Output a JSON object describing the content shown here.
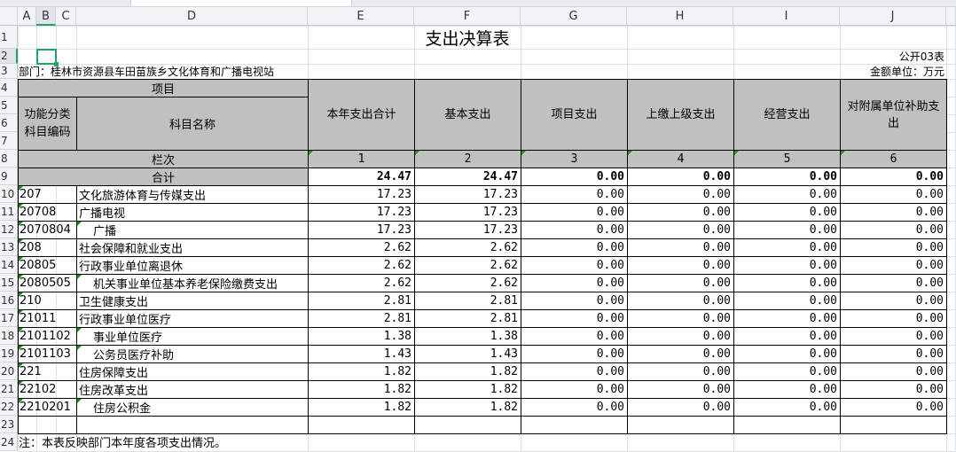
{
  "sheet": {
    "columns": [
      "A",
      "B",
      "C",
      "D",
      "E",
      "F",
      "G",
      "H",
      "I",
      "J"
    ],
    "selected_cell": "B2",
    "title": "支出决算表",
    "form_code": "公开03表",
    "department": "部门：桂林市资源县车田苗族乡文化体育和广播电视站",
    "unit": "金额单位：万元",
    "header": {
      "project": "项目",
      "code": "功能分类科目编码",
      "name": "科目名称",
      "cols": [
        "本年支出合计",
        "基本支出",
        "项目支出",
        "上缴上级支出",
        "经营支出",
        "对附属单位补助支出"
      ],
      "row_label": "栏次",
      "col_numbers": [
        "1",
        "2",
        "3",
        "4",
        "5",
        "6"
      ]
    },
    "total": {
      "label": "合计",
      "values": [
        "24.47",
        "24.47",
        "0.00",
        "0.00",
        "0.00",
        "0.00"
      ]
    },
    "rows": [
      {
        "code": "207",
        "name": "文化旅游体育与传媒支出",
        "indent": false,
        "values": [
          "17.23",
          "17.23",
          "0.00",
          "0.00",
          "0.00",
          "0.00"
        ]
      },
      {
        "code": "20708",
        "name": "广播电视",
        "indent": false,
        "values": [
          "17.23",
          "17.23",
          "0.00",
          "0.00",
          "0.00",
          "0.00"
        ]
      },
      {
        "code": "2070804",
        "name": "广播",
        "indent": true,
        "values": [
          "17.23",
          "17.23",
          "0.00",
          "0.00",
          "0.00",
          "0.00"
        ]
      },
      {
        "code": "208",
        "name": "社会保障和就业支出",
        "indent": false,
        "values": [
          "2.62",
          "2.62",
          "0.00",
          "0.00",
          "0.00",
          "0.00"
        ]
      },
      {
        "code": "20805",
        "name": "行政事业单位离退休",
        "indent": false,
        "values": [
          "2.62",
          "2.62",
          "0.00",
          "0.00",
          "0.00",
          "0.00"
        ]
      },
      {
        "code": "2080505",
        "name": "机关事业单位基本养老保险缴费支出",
        "indent": true,
        "values": [
          "2.62",
          "2.62",
          "0.00",
          "0.00",
          "0.00",
          "0.00"
        ]
      },
      {
        "code": "210",
        "name": "卫生健康支出",
        "indent": false,
        "values": [
          "2.81",
          "2.81",
          "0.00",
          "0.00",
          "0.00",
          "0.00"
        ]
      },
      {
        "code": "21011",
        "name": "行政事业单位医疗",
        "indent": false,
        "values": [
          "2.81",
          "2.81",
          "0.00",
          "0.00",
          "0.00",
          "0.00"
        ]
      },
      {
        "code": "2101102",
        "name": "事业单位医疗",
        "indent": true,
        "values": [
          "1.38",
          "1.38",
          "0.00",
          "0.00",
          "0.00",
          "0.00"
        ]
      },
      {
        "code": "2101103",
        "name": "公务员医疗补助",
        "indent": true,
        "values": [
          "1.43",
          "1.43",
          "0.00",
          "0.00",
          "0.00",
          "0.00"
        ]
      },
      {
        "code": "221",
        "name": "住房保障支出",
        "indent": false,
        "values": [
          "1.82",
          "1.82",
          "0.00",
          "0.00",
          "0.00",
          "0.00"
        ]
      },
      {
        "code": "22102",
        "name": "住房改革支出",
        "indent": false,
        "values": [
          "1.82",
          "1.82",
          "0.00",
          "0.00",
          "0.00",
          "0.00"
        ]
      },
      {
        "code": "2210201",
        "name": "住房公积金",
        "indent": true,
        "values": [
          "1.82",
          "1.82",
          "0.00",
          "0.00",
          "0.00",
          "0.00"
        ]
      }
    ],
    "note": "注：本表反映部门本年度各项支出情况。"
  }
}
